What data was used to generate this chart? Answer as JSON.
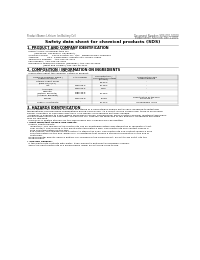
{
  "bg_color": "#ffffff",
  "header_left": "Product Name: Lithium Ion Battery Cell",
  "header_right_line1": "Document Number: SDS-001-00010",
  "header_right_line2": "Established / Revision: Dec.1.2010",
  "title": "Safety data sheet for chemical products (SDS)",
  "section1_title": "1. PRODUCT AND COMPANY IDENTIFICATION",
  "section1_items": [
    "  Product name: Lithium Ion Battery Cell",
    "  Product code: Cylindrical-type cell",
    "         (UR18650J, UR18650U, UR18650A)",
    "  Company name:     Sanyo Electric Co., Ltd.,  Mobile Energy Company",
    "  Address:           20-1  Kaminaizen, Sumoto City, Hyogo, Japan",
    "  Telephone number:   +81-799-26-4111",
    "  Fax number:  +81-799-26-4120",
    "  Emergency telephone number (Weekday) +81-799-26-3662",
    "                     (Night and holiday) +81-799-26-4101"
  ],
  "section2_title": "2. COMPOSITION / INFORMATION ON INGREDIENTS",
  "section2_items": [
    "  Substance or preparation: Preparation",
    "  Information about the chemical nature of product:"
  ],
  "table_headers": [
    "Common chemical name /\nSubstance Name",
    "CAS number",
    "Concentration /\nConcentration range\n(30-60%)",
    "Classification and\nhazard labeling"
  ],
  "table_rows": [
    [
      "Lithium cobalt oxide\n(LiMn-Co(III)O4)",
      "-",
      "30-60%",
      "-"
    ],
    [
      "Iron",
      "7439-89-6",
      "15-25%",
      "-"
    ],
    [
      "Aluminum",
      "7429-90-5",
      "2-8%",
      "-"
    ],
    [
      "Graphite\n(Natural graphite)\n(Artificial graphite)",
      "7782-42-5\n7782-44-2",
      "10-25%",
      "-"
    ],
    [
      "Copper",
      "7440-50-8",
      "5-15%",
      "Sensitization of the skin\ngroup No.2"
    ],
    [
      "Organic electrolyte",
      "-",
      "10-20%",
      "Inflammable liquid"
    ]
  ],
  "section3_title": "3. HAZARDS IDENTIFICATION",
  "section3_para1": [
    "For the battery cell, chemical materials are stored in a hermetically-sealed metal case, designed to withstand temperatures and pressures-combinations during normal use. As a result, during normal use, there is no physical danger of ignition or explosion and there is no danger of hazardous material leakage.",
    "  However, if exposed to a fire, added mechanical shocks, decomposed, when electro-chemical reactions take place, the gas inside cannot be operated. The battery cell case will be breached of fire patterns. Hazardous materials may be released.",
    "  Moreover, if heated strongly by the surrounding fire, solid gas may be emitted."
  ],
  "section3_bullet1": "Most important hazard and effects:",
  "section3_sub1": "  Human health effects:",
  "section3_sub1_items": [
    "    Inhalation: The release of the electrolyte has an anesthesia action and stimulates in respiratory tract.",
    "    Skin contact: The release of the electrolyte stimulates a skin. The electrolyte skin contact causes a sore and stimulation on the skin.",
    "    Eye contact: The release of the electrolyte stimulates eyes. The electrolyte eye contact causes a sore and stimulation on the eye. Especially, a substance that causes a strong inflammation of the eye is contained."
  ],
  "section3_env": "  Environmental effects: Since a battery cell remains in the environment, do not throw out it into the environment.",
  "section3_bullet2": "Specific hazards:",
  "section3_specific": [
    "  If the electrolyte contacts with water, it will generate detrimental hydrogen fluoride.",
    "  Since the neat electrolyte is a inflammable liquid, do not bring close to fire."
  ]
}
